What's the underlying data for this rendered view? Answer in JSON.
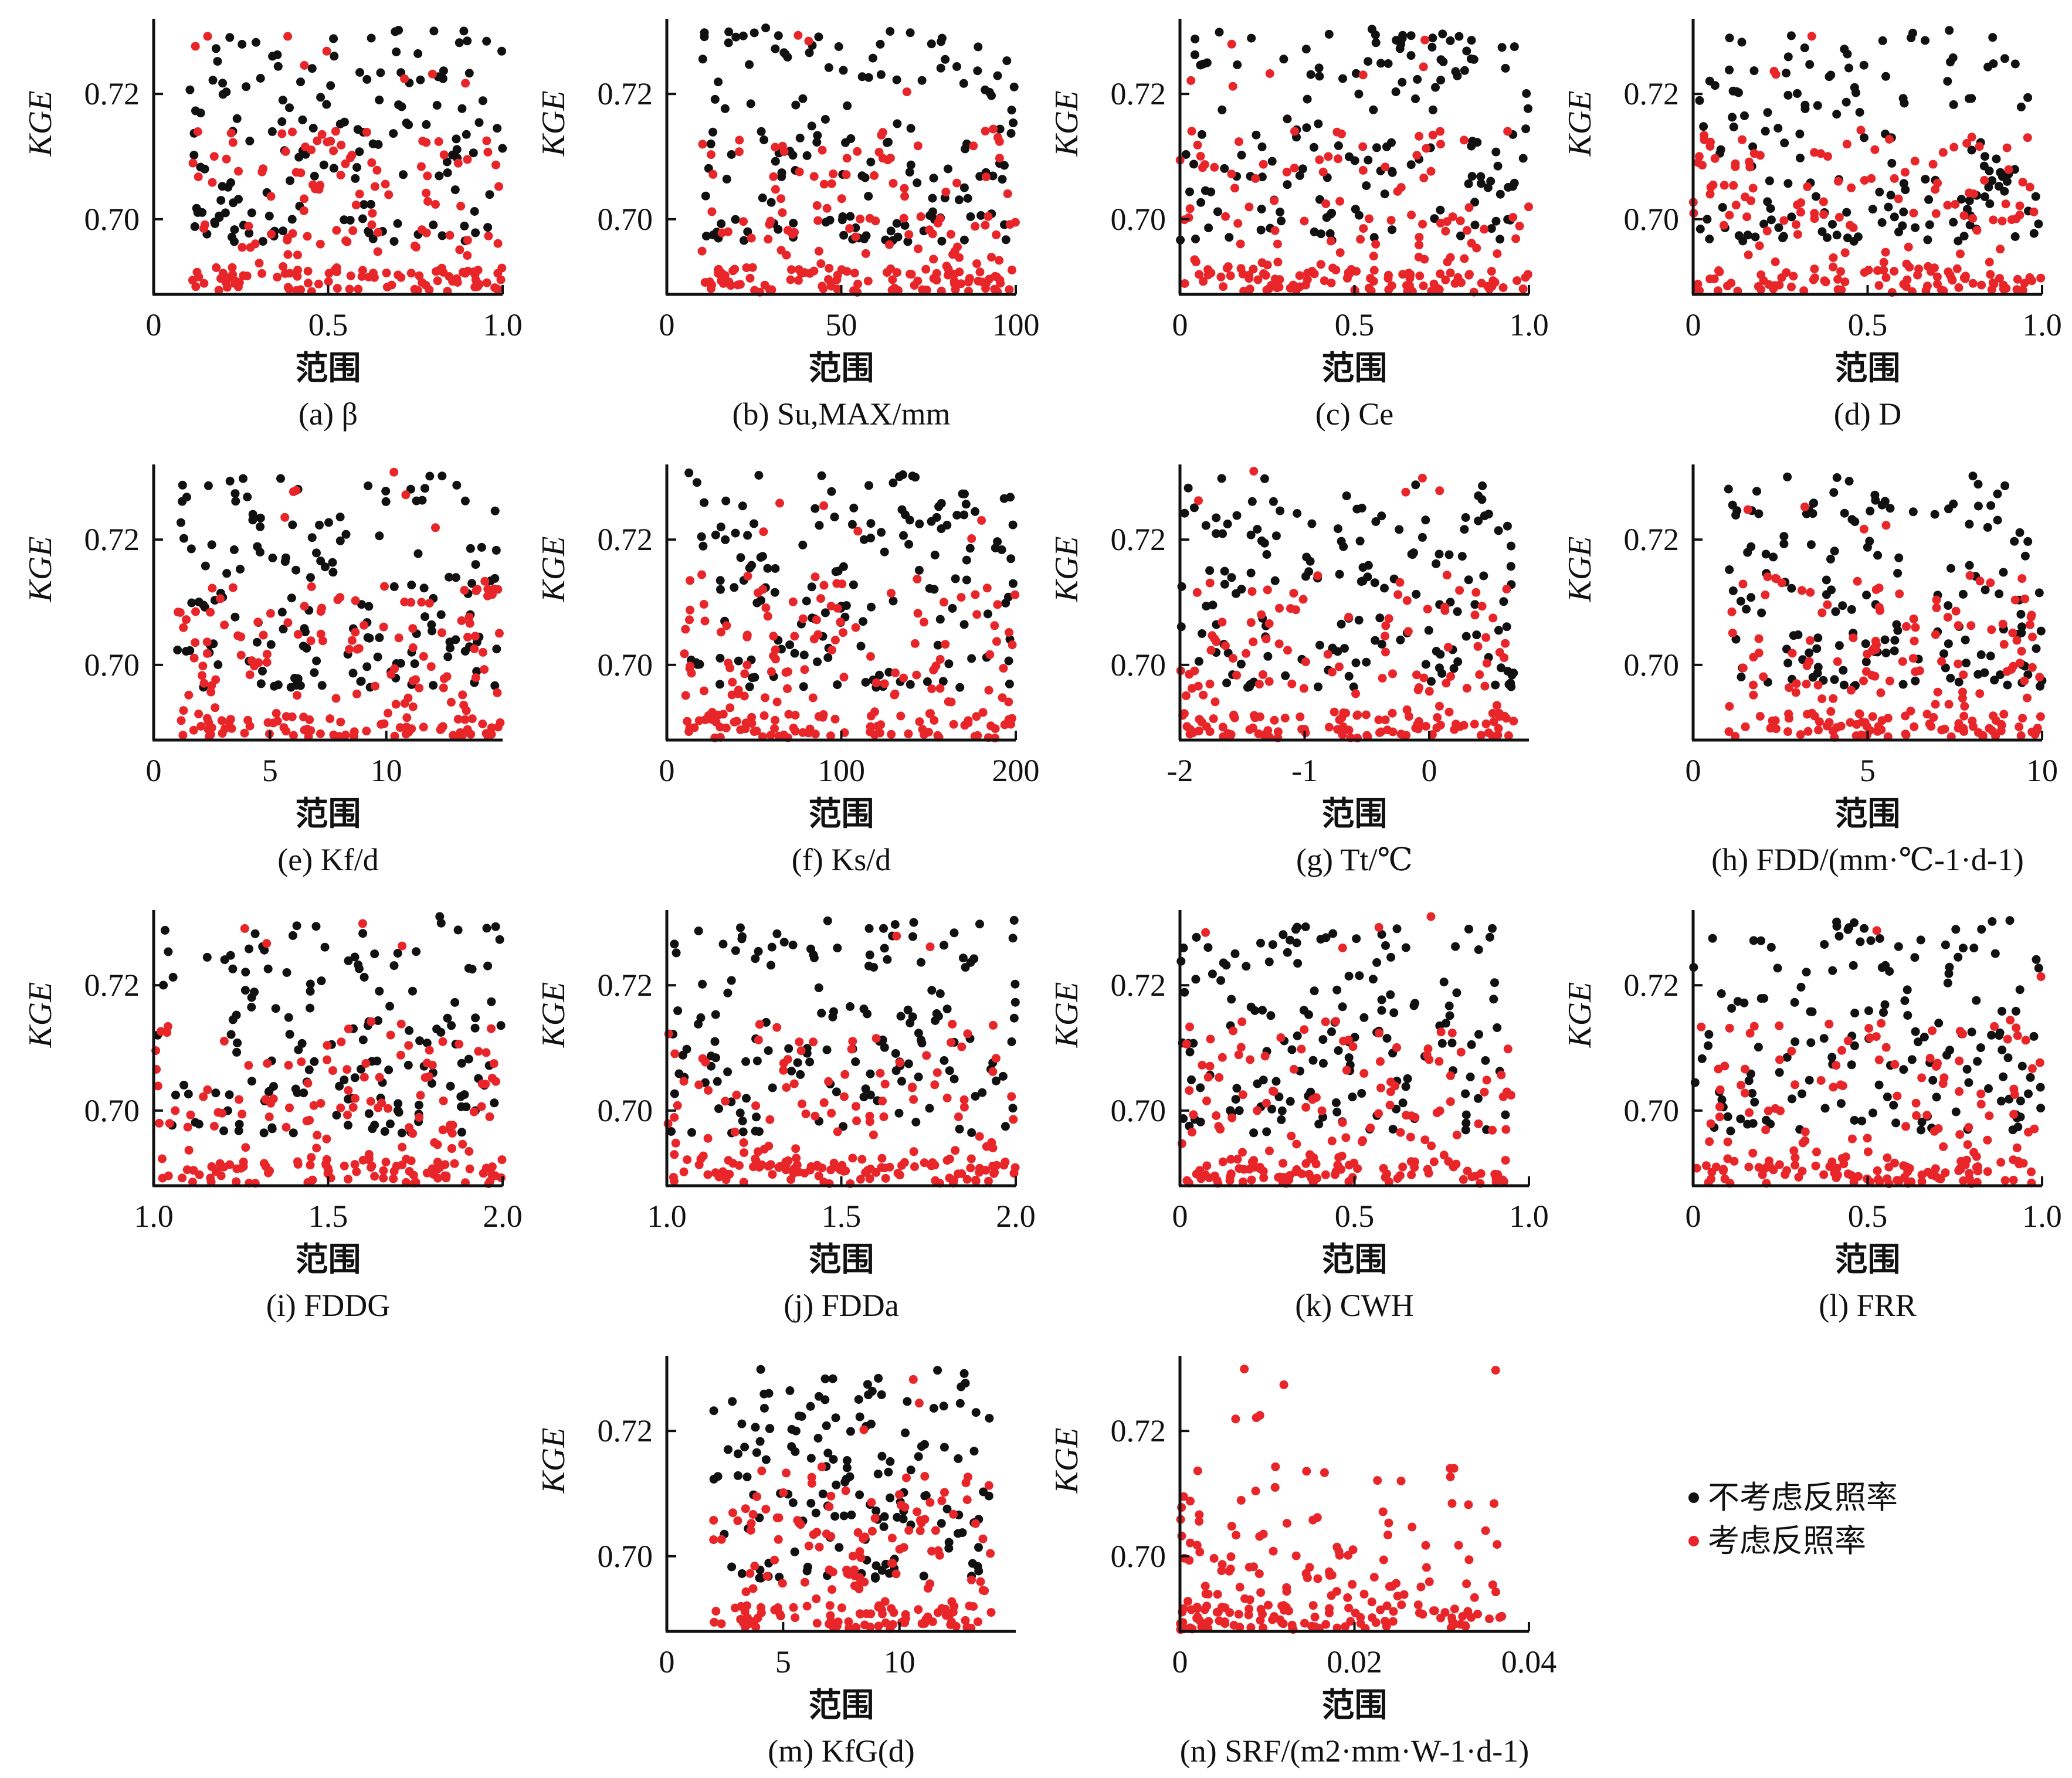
{
  "colors": {
    "no_albedo": "#111111",
    "with_albedo": "#e8262a",
    "axis": "#111111"
  },
  "legend": {
    "items": [
      {
        "label": "不考虑反照率",
        "color": "#111111"
      },
      {
        "label": "考虑反照率",
        "color": "#e8262a"
      }
    ]
  },
  "chart_data": [
    {
      "type": "scatter",
      "caption": "(a) β",
      "xlabel": "范围",
      "ylabel": "KGE",
      "xlim": [
        0,
        1.0
      ],
      "ylim": [
        0.688,
        0.732
      ],
      "xticks": [
        "0",
        "0.5",
        "1.0"
      ],
      "yticks": [
        "0.70",
        "0.72"
      ],
      "x_range_points": [
        0.1,
        1.0
      ]
    },
    {
      "type": "scatter",
      "caption": "(b) Su,MAX/mm",
      "xlabel": "范围",
      "ylabel": "KGE",
      "xlim": [
        0,
        100
      ],
      "ylim": [
        0.688,
        0.732
      ],
      "xticks": [
        "0",
        "50",
        "100"
      ],
      "yticks": [
        "0.70",
        "0.72"
      ],
      "x_range_points": [
        10,
        100
      ]
    },
    {
      "type": "scatter",
      "caption": "(c) Ce",
      "xlabel": "范围",
      "ylabel": "KGE",
      "xlim": [
        0,
        1.0
      ],
      "ylim": [
        0.688,
        0.732
      ],
      "xticks": [
        "0",
        "0.5",
        "1.0"
      ],
      "yticks": [
        "0.70",
        "0.72"
      ],
      "x_range_points": [
        0.0,
        1.0
      ]
    },
    {
      "type": "scatter",
      "caption": "(d) D",
      "xlabel": "范围",
      "ylabel": "KGE",
      "xlim": [
        0,
        1.0
      ],
      "ylim": [
        0.688,
        0.732
      ],
      "xticks": [
        "0",
        "0.5",
        "1.0"
      ],
      "yticks": [
        "0.70",
        "0.72"
      ],
      "x_range_points": [
        0.0,
        1.0
      ]
    },
    {
      "type": "scatter",
      "caption": "(e) Kf/d",
      "xlabel": "范围",
      "ylabel": "KGE",
      "xlim": [
        0,
        15
      ],
      "ylim": [
        0.688,
        0.732
      ],
      "xticks": [
        "0",
        "5",
        "10"
      ],
      "yticks": [
        "0.70",
        "0.72"
      ],
      "x_range_points": [
        1,
        15
      ]
    },
    {
      "type": "scatter",
      "caption": "(f) Ks/d",
      "xlabel": "范围",
      "ylabel": "KGE",
      "xlim": [
        0,
        200
      ],
      "ylim": [
        0.688,
        0.732
      ],
      "xticks": [
        "0",
        "100",
        "200"
      ],
      "yticks": [
        "0.70",
        "0.72"
      ],
      "x_range_points": [
        10,
        200
      ]
    },
    {
      "type": "scatter",
      "caption": "(g) Tt/℃",
      "xlabel": "范围",
      "ylabel": "KGE",
      "xlim": [
        -2,
        0.8
      ],
      "ylim": [
        0.688,
        0.732
      ],
      "xticks": [
        "-2",
        "-1",
        "0"
      ],
      "yticks": [
        "0.70",
        "0.72"
      ],
      "x_range_points": [
        -2,
        0.7
      ]
    },
    {
      "type": "scatter",
      "caption": "(h) FDD/(mm·℃-1·d-1)",
      "xlabel": "范围",
      "ylabel": "KGE",
      "xlim": [
        0,
        10
      ],
      "ylim": [
        0.688,
        0.732
      ],
      "xticks": [
        "0",
        "5",
        "10"
      ],
      "yticks": [
        "0.70",
        "0.72"
      ],
      "x_range_points": [
        1,
        10
      ]
    },
    {
      "type": "scatter",
      "caption": "(i) FDDG",
      "xlabel": "范围",
      "ylabel": "KGE",
      "xlim": [
        1.0,
        2.0
      ],
      "ylim": [
        0.688,
        0.732
      ],
      "xticks": [
        "1.0",
        "1.5",
        "2.0"
      ],
      "yticks": [
        "0.70",
        "0.72"
      ],
      "x_range_points": [
        1.0,
        2.0
      ]
    },
    {
      "type": "scatter",
      "caption": "(j) FDDa",
      "xlabel": "范围",
      "ylabel": "KGE",
      "xlim": [
        1.0,
        2.0
      ],
      "ylim": [
        0.688,
        0.732
      ],
      "xticks": [
        "1.0",
        "1.5",
        "2.0"
      ],
      "yticks": [
        "0.70",
        "0.72"
      ],
      "x_range_points": [
        1.0,
        2.0
      ]
    },
    {
      "type": "scatter",
      "caption": "(k) CWH",
      "xlabel": "范围",
      "ylabel": "KGE",
      "xlim": [
        0,
        1.0
      ],
      "ylim": [
        0.688,
        0.732
      ],
      "xticks": [
        "0",
        "0.5",
        "1.0"
      ],
      "yticks": [
        "0.70",
        "0.72"
      ],
      "x_range_points": [
        0.0,
        0.95
      ]
    },
    {
      "type": "scatter",
      "caption": "(l) FRR",
      "xlabel": "范围",
      "ylabel": "KGE",
      "xlim": [
        0,
        1.0
      ],
      "ylim": [
        0.688,
        0.732
      ],
      "xticks": [
        "0",
        "0.5",
        "1.0"
      ],
      "yticks": [
        "0.70",
        "0.72"
      ],
      "x_range_points": [
        0.0,
        1.0
      ]
    },
    {
      "type": "scatter",
      "caption": "(m) KfG(d)",
      "xlabel": "范围",
      "ylabel": "KGE",
      "xlim": [
        0,
        15
      ],
      "ylim": [
        0.688,
        0.732
      ],
      "xticks": [
        "0",
        "5",
        "10"
      ],
      "yticks": [
        "0.70",
        "0.72"
      ],
      "x_range_points": [
        2,
        14
      ]
    },
    {
      "type": "scatter",
      "caption": "(n) SRF/(m2·mm·W-1·d-1)",
      "xlabel": "范围",
      "ylabel": "KGE",
      "xlim": [
        0,
        0.04
      ],
      "ylim": [
        0.688,
        0.732
      ],
      "xticks": [
        "0",
        "0.02",
        "0.04"
      ],
      "yticks": [
        "0.70",
        "0.72"
      ],
      "x_range_points": [
        0,
        0.037
      ],
      "series_shown": "with_albedo"
    }
  ]
}
